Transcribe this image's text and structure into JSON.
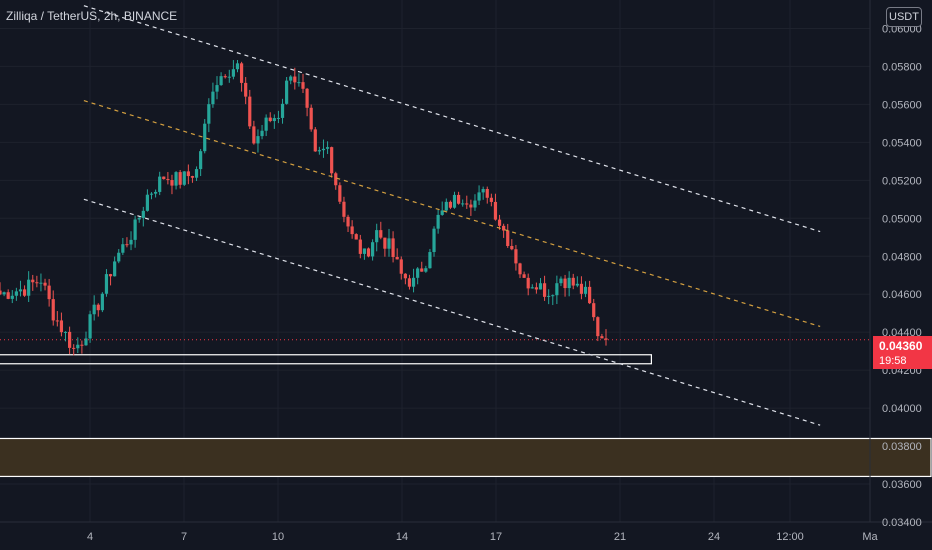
{
  "header": {
    "symbol_title": "Zilliqa / TetherUS, 2h, BINANCE"
  },
  "price_scale": {
    "currency_label": "USDT",
    "last_price": "0.04360",
    "countdown": "19:58",
    "last_price_color": "#f23645"
  },
  "colors": {
    "background": "#131722",
    "grid": "#1e222d",
    "candle_up": "#26a69a",
    "candle_down": "#ef5350",
    "channel_line": "#e0e3eb",
    "channel_mid": "#d4a040",
    "zone_border": "#ffffff",
    "zone_fill": "#3b3020"
  },
  "chart_data": {
    "type": "candlestick",
    "title": "Zilliqa / TetherUS, 2h, BINANCE",
    "ylim": [
      0.034,
      0.0615
    ],
    "y_ticks": [
      "0.03400",
      "0.03600",
      "0.03800",
      "0.04000",
      "0.04200",
      "0.04400",
      "0.04600",
      "0.04800",
      "0.05000",
      "0.05200",
      "0.05400",
      "0.05600",
      "0.05800",
      "0.06000"
    ],
    "x_ticks": [
      "4",
      "7",
      "10",
      "14",
      "17",
      "21",
      "24",
      "12:00",
      "Ma"
    ],
    "last_price": 0.0436,
    "anchors": [
      [
        0,
        0.046
      ],
      [
        6,
        0.0463
      ],
      [
        10,
        0.0468
      ],
      [
        13,
        0.045
      ],
      [
        18,
        0.0431
      ],
      [
        20,
        0.0436
      ],
      [
        24,
        0.0455
      ],
      [
        28,
        0.0478
      ],
      [
        33,
        0.0495
      ],
      [
        36,
        0.0512
      ],
      [
        40,
        0.0522
      ],
      [
        44,
        0.052
      ],
      [
        48,
        0.0525
      ],
      [
        52,
        0.057
      ],
      [
        55,
        0.0578
      ],
      [
        58,
        0.058
      ],
      [
        62,
        0.054
      ],
      [
        65,
        0.055
      ],
      [
        68,
        0.0555
      ],
      [
        71,
        0.0578
      ],
      [
        74,
        0.0565
      ],
      [
        77,
        0.0532
      ],
      [
        80,
        0.0537
      ],
      [
        83,
        0.051
      ],
      [
        86,
        0.049
      ],
      [
        89,
        0.048
      ],
      [
        92,
        0.0493
      ],
      [
        95,
        0.0485
      ],
      [
        98,
        0.047
      ],
      [
        101,
        0.0466
      ],
      [
        104,
        0.0478
      ],
      [
        107,
        0.05
      ],
      [
        110,
        0.0508
      ],
      [
        113,
        0.0512
      ],
      [
        116,
        0.0509
      ],
      [
        119,
        0.0514
      ],
      [
        122,
        0.0498
      ],
      [
        125,
        0.0485
      ],
      [
        128,
        0.0466
      ],
      [
        131,
        0.0467
      ],
      [
        134,
        0.046
      ],
      [
        137,
        0.0469
      ],
      [
        140,
        0.0465
      ],
      [
        143,
        0.046
      ],
      [
        146,
        0.044
      ],
      [
        148,
        0.0436
      ]
    ],
    "channel_upper": [
      [
        0.09,
        0.0612
      ],
      [
        0.88,
        0.0493
      ]
    ],
    "channel_middle": [
      [
        0.09,
        0.0562
      ],
      [
        0.88,
        0.0443
      ]
    ],
    "channel_lower": [
      [
        0.09,
        0.051
      ],
      [
        0.88,
        0.0391
      ]
    ],
    "support_zones": [
      {
        "y_low": 0.0424,
        "y_high": 0.0426,
        "x_end_fraction": 0.7
      },
      {
        "y_low": 0.0364,
        "y_high": 0.0384,
        "x_end_fraction": 1.0
      }
    ],
    "last_price_line": 0.0436
  }
}
